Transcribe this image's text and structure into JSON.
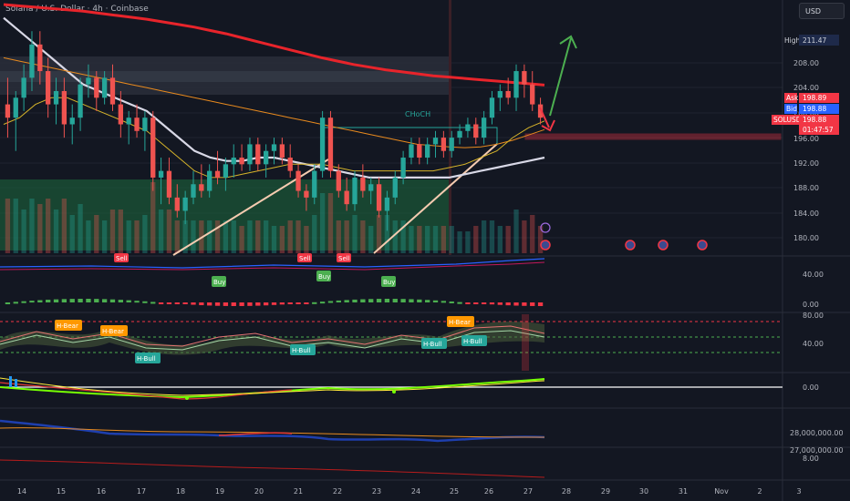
{
  "title": "Solana / U.S. Dollar · 4h · Coinbase",
  "currency_button": "USD",
  "colors": {
    "bg": "#131722",
    "up": "#26a69a",
    "down": "#ef5350",
    "ma_red": "#e8242b",
    "ma_white": "#d8d8e6",
    "ma_orange": "#e88a1e",
    "ma_yellow": "#d6b42a",
    "zone": "#f23645",
    "arrow": "#4caf50"
  },
  "price_scale": [
    "208.00",
    "204.00",
    "200.00",
    "196.00",
    "192.00",
    "188.00",
    "184.00",
    "180.00"
  ],
  "price_tags": {
    "high_label": "High",
    "high_value": "211.47",
    "ask_label": "Ask",
    "ask_value": "198.89",
    "bid_label": "Bid",
    "bid_value": "198.88",
    "symbol_label": "SOLUSD",
    "last_value": "198.88",
    "countdown": "01:47:57"
  },
  "x_axis": [
    "14",
    "15",
    "16",
    "17",
    "18",
    "19",
    "20",
    "21",
    "22",
    "23",
    "24",
    "25",
    "26",
    "27",
    "28",
    "29",
    "30",
    "31",
    "Nov",
    "2",
    "3"
  ],
  "annotations": {
    "choch": "CHoCH",
    "sell": "Sell",
    "buy": "Buy",
    "h_bear": "H-Bear",
    "h_bull": "H-Bull"
  },
  "panel_scales": {
    "p1": [
      "40.00",
      "0.00"
    ],
    "p2": [
      "80.00",
      "40.00"
    ],
    "p3": [
      "0.00"
    ],
    "p4": [
      "28,000,000.00",
      "27,000,000.00"
    ],
    "p5": [
      "8.00"
    ]
  },
  "chart_data": {
    "type": "candlestick",
    "symbol": "SOLUSD",
    "timeframe": "4h",
    "ylim": [
      178,
      214
    ],
    "ohlc": [
      [
        199,
        203,
        194,
        197
      ],
      [
        197,
        201,
        192,
        200
      ],
      [
        200,
        205,
        198,
        203
      ],
      [
        203,
        210,
        201,
        208
      ],
      [
        208,
        210,
        202,
        204
      ],
      [
        204,
        206,
        197,
        199
      ],
      [
        199,
        203,
        196,
        201
      ],
      [
        201,
        203,
        194,
        196
      ],
      [
        196,
        199,
        193,
        197
      ],
      [
        197,
        203,
        195,
        202
      ],
      [
        202,
        205,
        200,
        203
      ],
      [
        203,
        204,
        198,
        200
      ],
      [
        200,
        204,
        199,
        203
      ],
      [
        203,
        205,
        198,
        199
      ],
      [
        199,
        201,
        194,
        196
      ],
      [
        196,
        198,
        193,
        197
      ],
      [
        197,
        199,
        194,
        195
      ],
      [
        195,
        198,
        192,
        197
      ],
      [
        197,
        198,
        186,
        188
      ],
      [
        188,
        191,
        184,
        189
      ],
      [
        189,
        191,
        184,
        185
      ],
      [
        185,
        187,
        182,
        183
      ],
      [
        183,
        186,
        181,
        185
      ],
      [
        185,
        189,
        184,
        187
      ],
      [
        187,
        190,
        185,
        186
      ],
      [
        186,
        190,
        185,
        189
      ],
      [
        189,
        192,
        187,
        188
      ],
      [
        188,
        191,
        186,
        190
      ],
      [
        190,
        193,
        188,
        191
      ],
      [
        191,
        193,
        189,
        190
      ],
      [
        190,
        194,
        189,
        193
      ],
      [
        193,
        194,
        189,
        190
      ],
      [
        190,
        193,
        188,
        192
      ],
      [
        192,
        194,
        190,
        193
      ],
      [
        193,
        194,
        190,
        191
      ],
      [
        191,
        193,
        188,
        189
      ],
      [
        189,
        190,
        185,
        186
      ],
      [
        186,
        187,
        183,
        185
      ],
      [
        185,
        190,
        184,
        189
      ],
      [
        189,
        198,
        188,
        197
      ],
      [
        197,
        198,
        188,
        189
      ],
      [
        189,
        190,
        185,
        186
      ],
      [
        186,
        188,
        183,
        184
      ],
      [
        184,
        189,
        183,
        188
      ],
      [
        188,
        190,
        185,
        186
      ],
      [
        186,
        188,
        184,
        187
      ],
      [
        187,
        188,
        182,
        183
      ],
      [
        183,
        186,
        180,
        185
      ],
      [
        185,
        189,
        184,
        188
      ],
      [
        188,
        192,
        187,
        191
      ],
      [
        191,
        194,
        190,
        193
      ],
      [
        193,
        194,
        190,
        191
      ],
      [
        191,
        194,
        190,
        193
      ],
      [
        193,
        195,
        191,
        194
      ],
      [
        194,
        195,
        191,
        192
      ],
      [
        192,
        195,
        191,
        194
      ],
      [
        194,
        196,
        193,
        195
      ],
      [
        195,
        197,
        194,
        196
      ],
      [
        196,
        197,
        193,
        194
      ],
      [
        194,
        198,
        193,
        197
      ],
      [
        197,
        201,
        196,
        200
      ],
      [
        200,
        202,
        198,
        201
      ],
      [
        201,
        203,
        199,
        200
      ],
      [
        200,
        205,
        198,
        204
      ],
      [
        204,
        205,
        200,
        202
      ],
      [
        202,
        204,
        198,
        199
      ],
      [
        199,
        200,
        196,
        197
      ]
    ],
    "moving_averages": [
      {
        "color": "#e8242b",
        "values": [
          214,
          213.8,
          213.6,
          213.4,
          213.2,
          213,
          212.7,
          212.4,
          212.1,
          211.8,
          211.4,
          211,
          210.6,
          210.1,
          209.6,
          209,
          208.4,
          207.8,
          207.2,
          206.6,
          206,
          205.5,
          205,
          204.6,
          204.2,
          203.9,
          203.6,
          203.3,
          203.1,
          202.9,
          202.7,
          202.5,
          202.3,
          202.1,
          201.9
        ]
      },
      {
        "color": "#d8d8e6",
        "values": [
          212,
          210,
          208,
          206,
          204,
          202,
          201,
          200,
          199,
          198,
          196,
          194,
          192,
          191,
          190.5,
          190.5,
          191,
          191,
          190.5,
          190,
          189.5,
          189,
          188.5,
          188,
          188,
          188,
          188,
          188,
          188,
          188.5,
          189,
          189.5,
          190,
          190.5,
          191
        ]
      },
      {
        "color": "#e88a1e",
        "values": [
          206,
          205.5,
          205,
          204.5,
          204,
          203.5,
          203,
          202.5,
          202,
          201.5,
          201,
          200.5,
          200,
          199.5,
          199,
          198.5,
          198,
          197.5,
          197,
          196.5,
          196,
          195.5,
          195,
          194.5,
          194,
          193.5,
          193,
          192.8,
          192.6,
          192.5,
          192.6,
          193,
          193.6,
          194.4,
          195.2
        ]
      },
      {
        "color": "#d6b42a",
        "values": [
          196,
          197,
          199,
          200,
          200,
          199,
          198,
          197,
          196,
          195,
          193,
          191,
          189,
          188,
          188,
          188.5,
          189,
          189.5,
          190,
          190,
          190,
          189.5,
          189,
          189,
          189,
          189,
          189,
          189,
          189.5,
          190,
          191,
          192,
          194,
          195.5,
          196.5
        ]
      }
    ]
  }
}
